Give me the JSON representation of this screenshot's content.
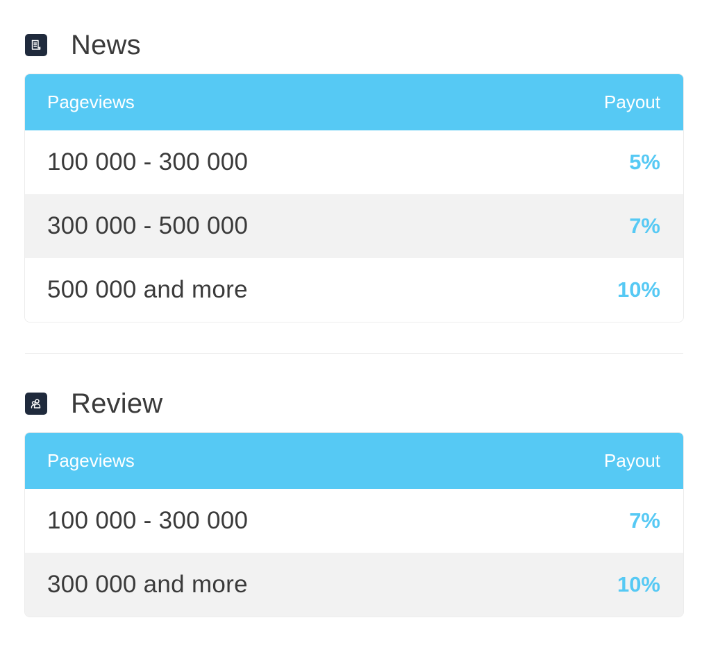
{
  "news": {
    "icon": "document-icon",
    "title": "News",
    "columns": {
      "pageviews": "Pageviews",
      "payout": "Payout"
    },
    "rows": [
      {
        "range": "100 000 - 300 000",
        "payout": "5%"
      },
      {
        "range": "300 000 - 500 000",
        "payout": "7%"
      },
      {
        "range": "500 000 and more",
        "payout": "10%"
      }
    ]
  },
  "review": {
    "icon": "users-icon",
    "title": "Review",
    "columns": {
      "pageviews": "Pageviews",
      "payout": "Payout"
    },
    "rows": [
      {
        "range": "100 000 - 300 000",
        "payout": "7%"
      },
      {
        "range": "300 000 and more",
        "payout": "10%"
      }
    ]
  },
  "colors": {
    "accent": "#56c9f4",
    "icon_bg": "#1f2a3c",
    "text": "#3a3a3a",
    "row_alt": "#f2f2f2"
  }
}
